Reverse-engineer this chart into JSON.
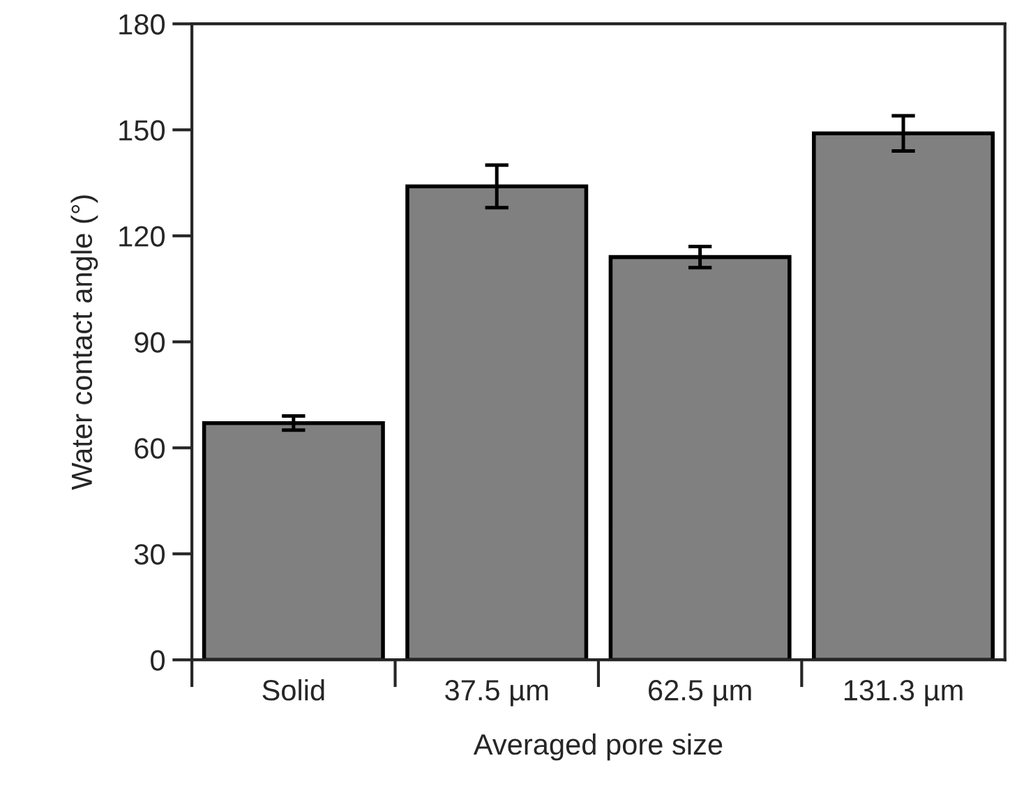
{
  "chart_data": {
    "type": "bar",
    "xlabel": "Averaged pore size",
    "ylabel": "Water contact angle (°)",
    "categories": [
      "Solid",
      "37.5 µm",
      "62.5 µm",
      "131.3 µm"
    ],
    "values": [
      67,
      134,
      114,
      149
    ],
    "errors": [
      2,
      6,
      3,
      5
    ],
    "color": "#808080",
    "ylim": [
      0,
      180
    ],
    "yticks": [
      0,
      30,
      60,
      90,
      120,
      150,
      180
    ],
    "grid": false,
    "legend": false
  }
}
